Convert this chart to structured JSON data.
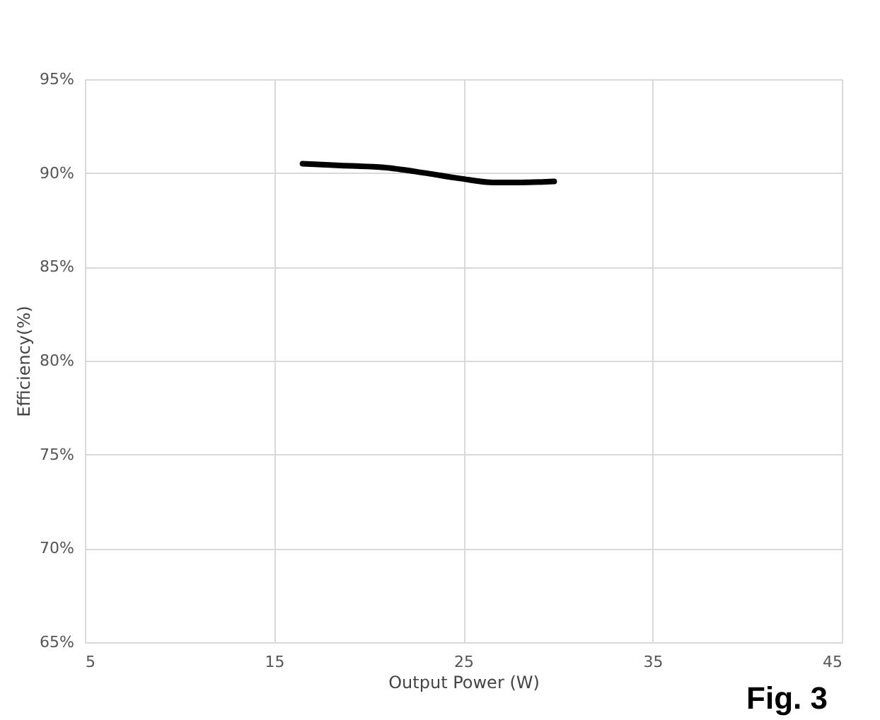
{
  "chart_data": {
    "type": "line",
    "xlabel": "Output Power (W)",
    "ylabel": "Efficiency(%)",
    "x": [
      16.5,
      18.5,
      20.8,
      23,
      24.9,
      26.6,
      28,
      29.8
    ],
    "series": [
      {
        "color": "#000000",
        "values": [
          90.5,
          90.4,
          90.3,
          90.0,
          89.7,
          89.5,
          89.5,
          89.55
        ]
      }
    ],
    "xlim": [
      5,
      45
    ],
    "xticks": [
      5,
      15,
      25,
      35,
      45
    ],
    "ylim": [
      65,
      95
    ],
    "yticks": [
      {
        "value": 65,
        "label": "65%"
      },
      {
        "value": 70,
        "label": "70%"
      },
      {
        "value": 75,
        "label": "75%"
      },
      {
        "value": 80,
        "label": "80%"
      },
      {
        "value": 85,
        "label": "85%"
      },
      {
        "value": 90,
        "label": "90%"
      },
      {
        "value": 95,
        "label": "95%"
      }
    ],
    "grid": true,
    "marker": "none",
    "line_style": "solid",
    "annotations": [
      "Fig. 3"
    ]
  }
}
